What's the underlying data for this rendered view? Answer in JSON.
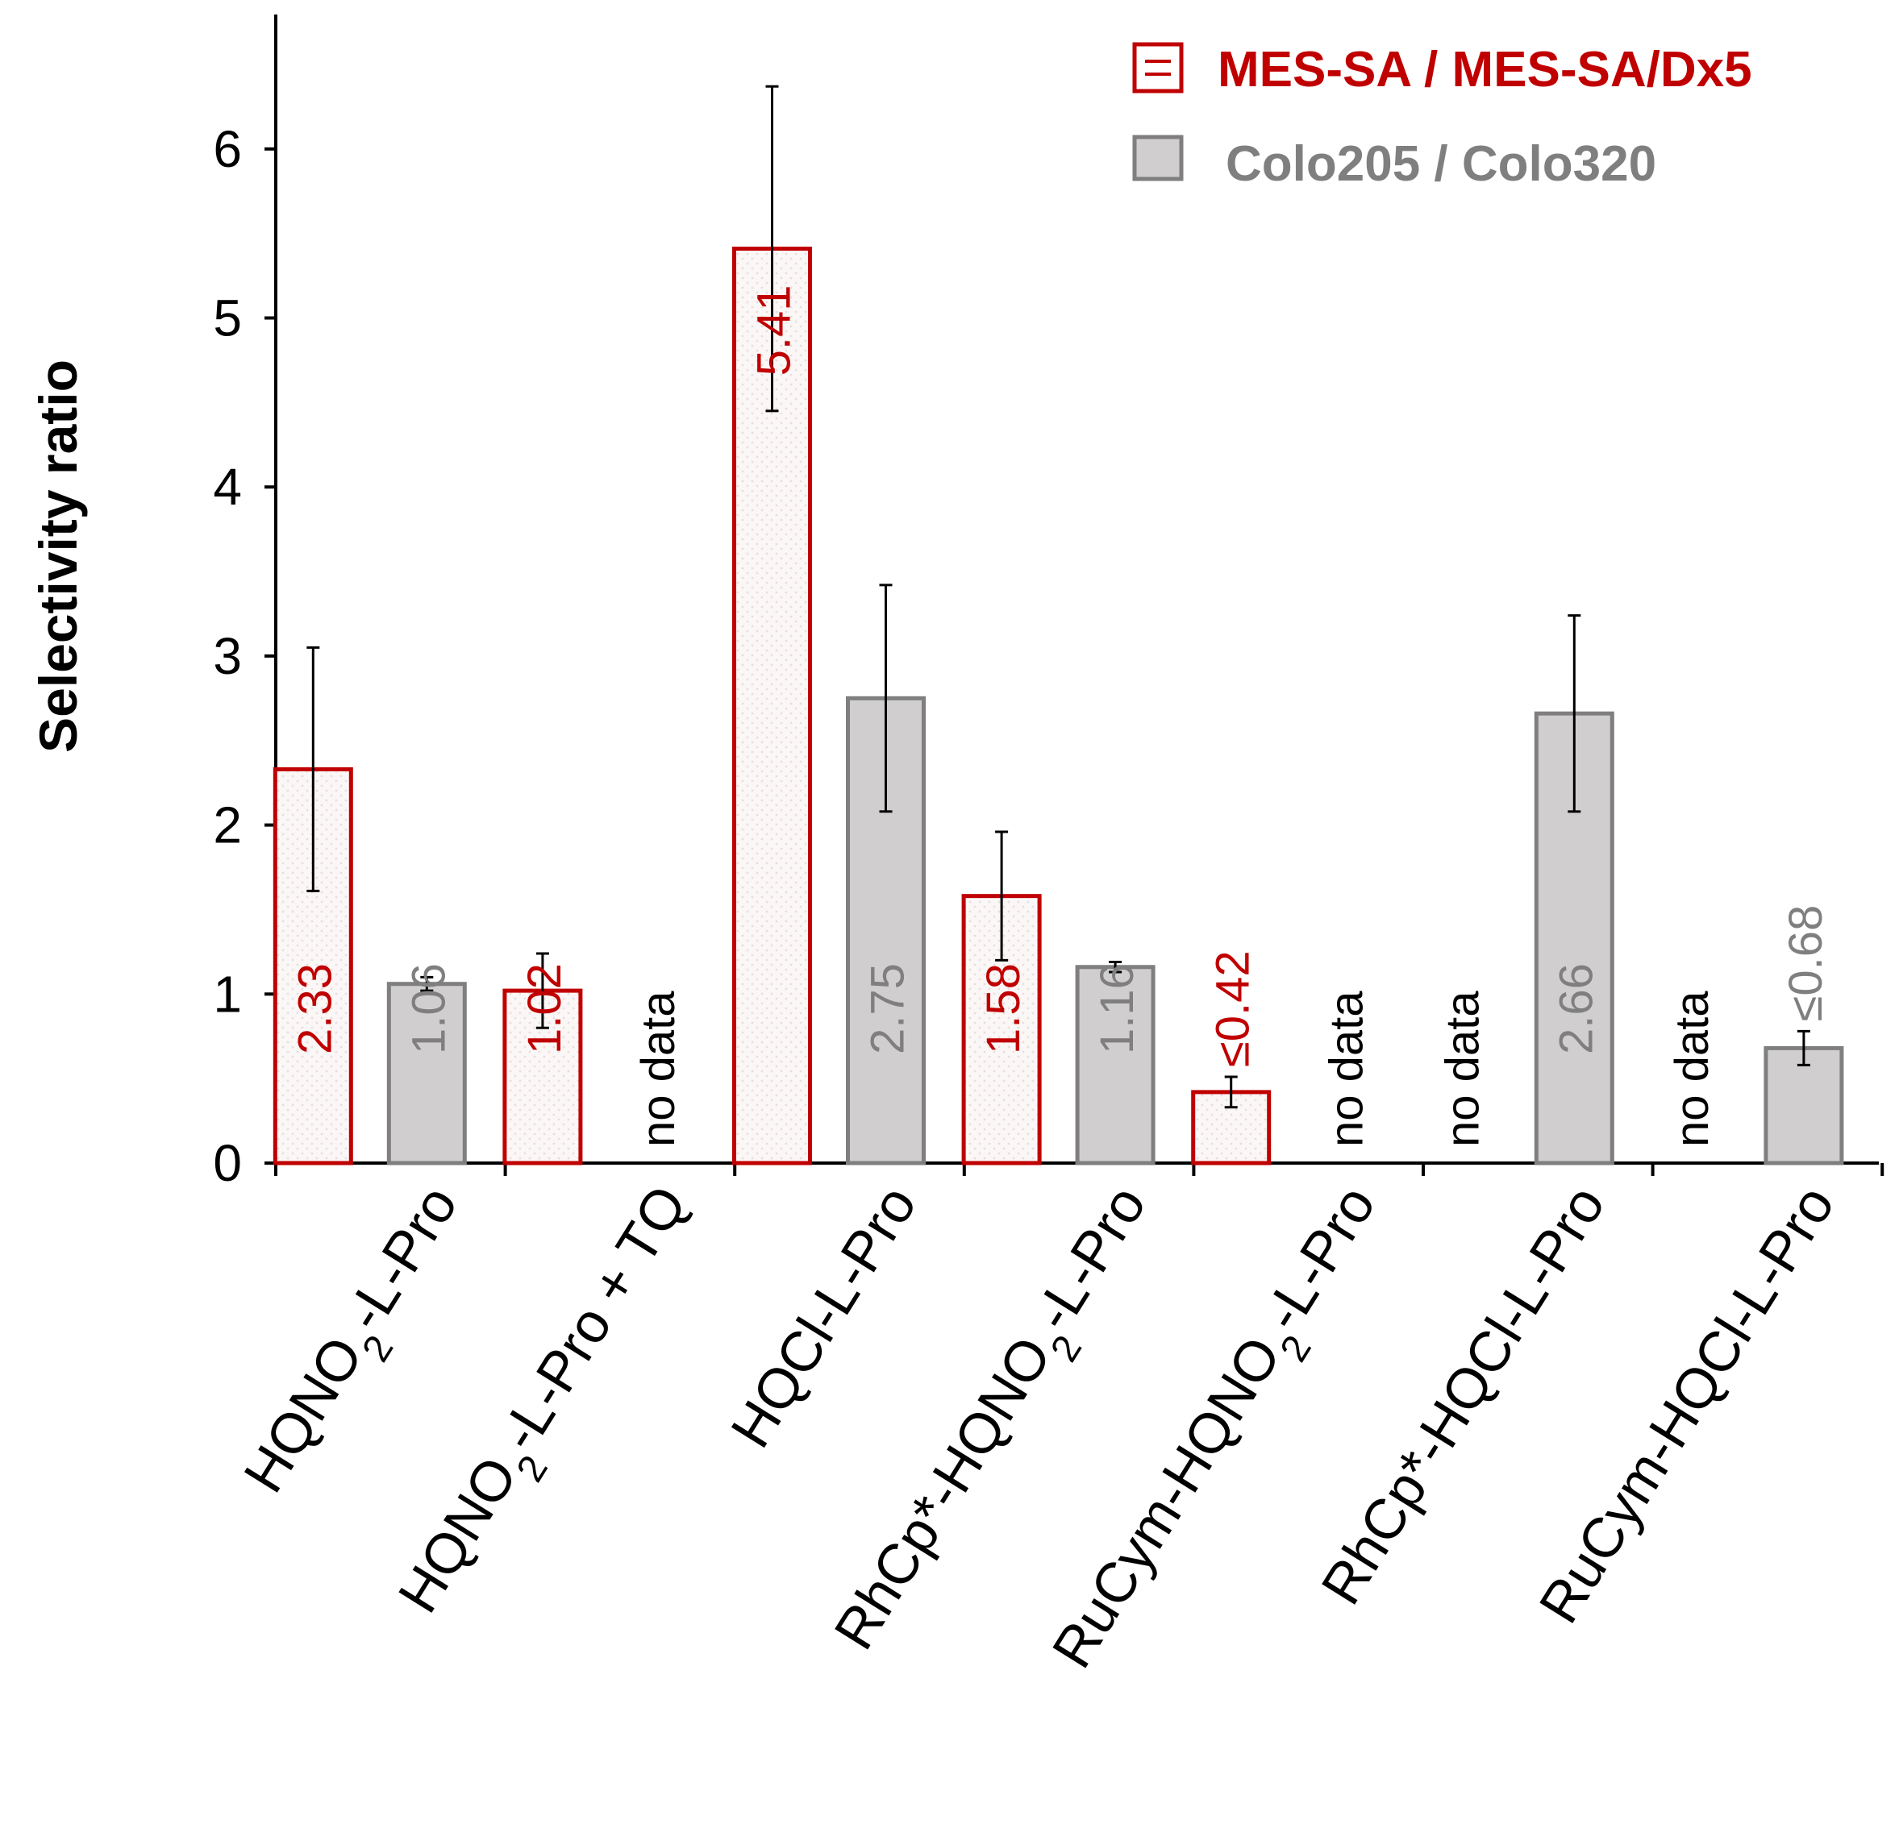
{
  "chart_data": {
    "type": "bar",
    "title": "",
    "ylabel": "Selectivity ratio",
    "xlabel": "",
    "ylim": [
      0,
      6.5
    ],
    "yticks": [
      0,
      1,
      2,
      3,
      4,
      5,
      6
    ],
    "categories": [
      {
        "label": "HQNO2-L-Pro",
        "parts": [
          {
            "t": "HQNO"
          },
          {
            "t": "2",
            "sub": true
          },
          {
            "t": "-L-Pro"
          }
        ]
      },
      {
        "label": "HQNO2-L-Pro + TQ",
        "parts": [
          {
            "t": "HQNO"
          },
          {
            "t": "2",
            "sub": true
          },
          {
            "t": "-L-Pro + TQ"
          }
        ]
      },
      {
        "label": "HQCl-L-Pro",
        "parts": [
          {
            "t": "HQCl-L-Pro"
          }
        ]
      },
      {
        "label": "RhCp*-HQNO2-L-Pro",
        "parts": [
          {
            "t": "RhCp*-HQNO"
          },
          {
            "t": "2",
            "sub": true
          },
          {
            "t": "-L-Pro"
          }
        ]
      },
      {
        "label": "RuCym-HQNO2-L-Pro",
        "parts": [
          {
            "t": "RuCym-HQNO"
          },
          {
            "t": "2",
            "sub": true
          },
          {
            "t": "-L-Pro"
          }
        ]
      },
      {
        "label": "RhCp*-HQCl-L-Pro",
        "parts": [
          {
            "t": "RhCp*-HQCl-L-Pro"
          }
        ]
      },
      {
        "label": "RuCym-HQCl-L-Pro",
        "parts": [
          {
            "t": "RuCym-HQCl-L-Pro"
          }
        ]
      }
    ],
    "series": [
      {
        "name": "MES-SA / MES-SA/Dx5",
        "color": "#c00000",
        "fill": "#fbf7f7",
        "values": [
          2.33,
          1.02,
          5.41,
          1.58,
          0.42,
          null,
          null
        ],
        "errors": [
          0.72,
          0.22,
          0.96,
          0.38,
          0.09,
          null,
          null
        ],
        "labels": [
          "2.33",
          "1.02",
          "5.41",
          "1.58",
          "≤0.42",
          "no data",
          "no data"
        ],
        "label_above": [
          false,
          false,
          false,
          false,
          true,
          false,
          false
        ]
      },
      {
        "name": "Colo205 / Colo320",
        "color": "#7f7f7f",
        "fill": "#d0cece",
        "values": [
          1.06,
          null,
          2.75,
          1.16,
          null,
          2.66,
          0.68
        ],
        "errors": [
          0.04,
          null,
          0.67,
          0.03,
          null,
          0.58,
          0.1
        ],
        "labels": [
          "1.06",
          "no data",
          "2.75",
          "1.16",
          "no data",
          "2.66",
          "≤0.68"
        ],
        "label_above": [
          false,
          false,
          false,
          false,
          false,
          false,
          true
        ]
      }
    ],
    "legend": [
      {
        "label": "MES-SA / MES-SA/Dx5",
        "color": "#c00000",
        "icon": "hatched-red-square-icon"
      },
      {
        "label": "Colo205 / Colo320",
        "color": "#7f7f7f",
        "icon": "gray-square-icon"
      }
    ],
    "legend_position": "top-right",
    "grid": false
  }
}
